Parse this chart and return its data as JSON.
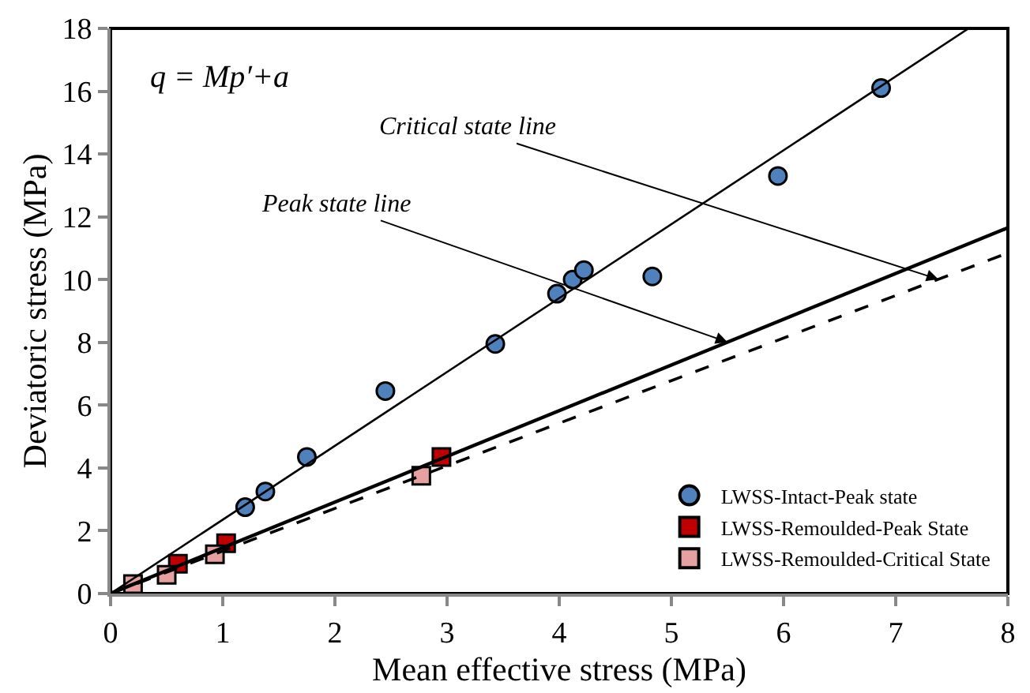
{
  "chart_data": {
    "type": "scatter",
    "xlabel": "Mean effective stress (MPa)",
    "ylabel": "Deviatoric stress (MPa)",
    "xlim": [
      0,
      8
    ],
    "xticks": [
      0,
      1,
      2,
      3,
      4,
      5,
      6,
      7,
      8
    ],
    "ylim": [
      0,
      18
    ],
    "yticks": [
      0,
      2,
      4,
      6,
      8,
      10,
      12,
      14,
      16,
      18
    ],
    "grid": false,
    "legend": "bottom right",
    "series": [
      {
        "name": "LWSS-Intact-Peak state",
        "color": "#4f81bd",
        "marker": "circle",
        "x": [
          1.2,
          1.38,
          1.75,
          2.45,
          3.43,
          3.98,
          4.12,
          4.22,
          4.83,
          5.95,
          6.87
        ],
        "values": [
          2.75,
          3.25,
          4.35,
          6.45,
          7.95,
          9.55,
          10.0,
          10.3,
          10.1,
          13.3,
          16.1
        ]
      },
      {
        "name": "LWSS-Remoulded-Peak State",
        "color": "#c00000",
        "marker": "square",
        "x": [
          0.6,
          1.03,
          2.95
        ],
        "values": [
          0.95,
          1.6,
          4.35
        ]
      },
      {
        "name": "LWSS-Remoulded-Critical State",
        "color": "#e6a0a0",
        "marker": "square",
        "x": [
          0.2,
          0.5,
          0.93,
          2.77
        ],
        "values": [
          0.3,
          0.6,
          1.25,
          3.75
        ]
      },
      {
        "type": "line",
        "color": "#000000",
        "line_style": "solid",
        "x": [
          0,
          7.65
        ],
        "values": [
          0,
          18
        ]
      },
      {
        "type": "line",
        "color": "#000000",
        "line_style": "solid",
        "x": [
          0,
          8
        ],
        "values": [
          0,
          11.65
        ]
      },
      {
        "type": "line",
        "color": "#000000",
        "line_style": "dashed",
        "x": [
          0,
          8
        ],
        "values": [
          0,
          10.85
        ]
      }
    ],
    "annotations": [
      "q = Mp′+a",
      {
        "text": "Critical state line",
        "x": 7.38,
        "y": 10.01
      },
      {
        "text": "Peak state line",
        "x": 5.5,
        "y": 8.01
      }
    ]
  }
}
